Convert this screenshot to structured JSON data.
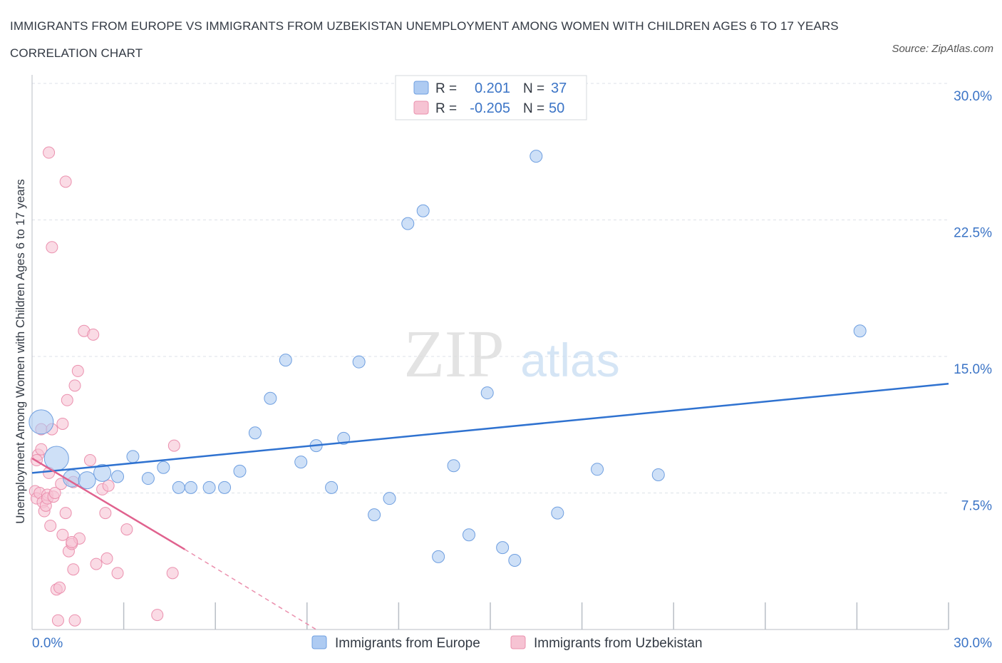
{
  "title": "IMMIGRANTS FROM EUROPE VS IMMIGRANTS FROM UZBEKISTAN UNEMPLOYMENT AMONG WOMEN WITH CHILDREN AGES 6 TO 17 YEARS CORRELATION CHART",
  "source": "Source: ZipAtlas.com",
  "watermark": {
    "zip": "ZIP",
    "atlas": "atlas"
  },
  "colors": {
    "europe_fill": "#aecbf2",
    "europe_stroke": "#6f9fe0",
    "europe_line": "#2f72d0",
    "uzbek_fill": "#f6c3d3",
    "uzbek_stroke": "#eb90ae",
    "uzbek_line": "#e0628e",
    "tick_label": "#3b74c6",
    "grid": "#dde2e8"
  },
  "chart_data": {
    "type": "scatter",
    "xlabel": "",
    "ylabel": "Unemployment Among Women with Children Ages 6 to 17 years",
    "xlim": [
      0,
      30
    ],
    "ylim": [
      0,
      30
    ],
    "x_tick_labels": [
      "0.0%",
      "30.0%"
    ],
    "y_ticks": [
      {
        "value": 7.5,
        "label": "7.5%"
      },
      {
        "value": 15,
        "label": "15.0%"
      },
      {
        "value": 22.5,
        "label": "22.5%"
      },
      {
        "value": 30,
        "label": "30.0%"
      }
    ],
    "legend_top": [
      {
        "r_label": "R =",
        "r_value": "0.201",
        "n_label": "N =",
        "n_value": "37"
      },
      {
        "r_label": "R =",
        "r_value": "-0.205",
        "n_label": "N =",
        "n_value": "50"
      }
    ],
    "series": [
      {
        "name": "Immigrants from Europe",
        "trend": {
          "x0": 0,
          "y0": 8.6,
          "x1": 30,
          "y1": 13.5
        },
        "points": [
          {
            "x": 0.3,
            "y": 11.4,
            "s": 3
          },
          {
            "x": 0.8,
            "y": 9.4,
            "s": 3
          },
          {
            "x": 1.3,
            "y": 8.3,
            "s": 2
          },
          {
            "x": 1.8,
            "y": 8.2,
            "s": 2
          },
          {
            "x": 2.3,
            "y": 8.6,
            "s": 2
          },
          {
            "x": 2.8,
            "y": 8.4,
            "s": 1
          },
          {
            "x": 3.3,
            "y": 9.5,
            "s": 1
          },
          {
            "x": 3.8,
            "y": 8.3,
            "s": 1
          },
          {
            "x": 4.3,
            "y": 8.9,
            "s": 1
          },
          {
            "x": 4.8,
            "y": 7.8,
            "s": 1
          },
          {
            "x": 5.2,
            "y": 7.8,
            "s": 1
          },
          {
            "x": 5.8,
            "y": 7.8,
            "s": 1
          },
          {
            "x": 6.3,
            "y": 7.8,
            "s": 1
          },
          {
            "x": 6.8,
            "y": 8.7,
            "s": 1
          },
          {
            "x": 7.3,
            "y": 10.8,
            "s": 1
          },
          {
            "x": 7.8,
            "y": 12.7,
            "s": 1
          },
          {
            "x": 8.3,
            "y": 14.8,
            "s": 1
          },
          {
            "x": 8.8,
            "y": 9.2,
            "s": 1
          },
          {
            "x": 9.3,
            "y": 10.1,
            "s": 1
          },
          {
            "x": 9.8,
            "y": 7.8,
            "s": 1
          },
          {
            "x": 10.2,
            "y": 10.5,
            "s": 1
          },
          {
            "x": 10.7,
            "y": 14.7,
            "s": 1
          },
          {
            "x": 11.2,
            "y": 6.3,
            "s": 1
          },
          {
            "x": 11.7,
            "y": 7.2,
            "s": 1
          },
          {
            "x": 12.3,
            "y": 22.3,
            "s": 1
          },
          {
            "x": 12.8,
            "y": 23.0,
            "s": 1
          },
          {
            "x": 13.3,
            "y": 4.0,
            "s": 1
          },
          {
            "x": 13.8,
            "y": 9.0,
            "s": 1
          },
          {
            "x": 14.3,
            "y": 5.2,
            "s": 1
          },
          {
            "x": 14.9,
            "y": 13.0,
            "s": 1
          },
          {
            "x": 15.4,
            "y": 4.5,
            "s": 1
          },
          {
            "x": 15.8,
            "y": 3.8,
            "s": 1
          },
          {
            "x": 16.5,
            "y": 26.0,
            "s": 1
          },
          {
            "x": 17.2,
            "y": 6.4,
            "s": 1
          },
          {
            "x": 18.5,
            "y": 8.8,
            "s": 1
          },
          {
            "x": 20.5,
            "y": 8.5,
            "s": 1
          },
          {
            "x": 27.1,
            "y": 16.4,
            "s": 1
          }
        ]
      },
      {
        "name": "Immigrants from Uzbekistan",
        "trend": {
          "x0": 0,
          "y0": 9.4,
          "x1": 5.0,
          "y1": 4.4
        },
        "trend_ext": {
          "x0": 5.0,
          "y0": 4.4,
          "x1": 9.3,
          "y1": 0.0
        },
        "points": [
          {
            "x": 0.1,
            "y": 7.6
          },
          {
            "x": 0.15,
            "y": 7.2
          },
          {
            "x": 0.2,
            "y": 9.6
          },
          {
            "x": 0.25,
            "y": 7.5
          },
          {
            "x": 0.3,
            "y": 11.0
          },
          {
            "x": 0.3,
            "y": 9.9
          },
          {
            "x": 0.35,
            "y": 7.0
          },
          {
            "x": 0.4,
            "y": 6.5
          },
          {
            "x": 0.45,
            "y": 6.8
          },
          {
            "x": 0.5,
            "y": 7.4
          },
          {
            "x": 0.5,
            "y": 7.2
          },
          {
            "x": 0.55,
            "y": 8.6
          },
          {
            "x": 0.6,
            "y": 5.7
          },
          {
            "x": 0.65,
            "y": 11.0
          },
          {
            "x": 0.7,
            "y": 7.3
          },
          {
            "x": 0.75,
            "y": 7.5
          },
          {
            "x": 0.55,
            "y": 26.2
          },
          {
            "x": 0.65,
            "y": 21.0
          },
          {
            "x": 0.8,
            "y": 2.2
          },
          {
            "x": 0.85,
            "y": 0.5
          },
          {
            "x": 0.9,
            "y": 2.3
          },
          {
            "x": 0.95,
            "y": 8.0
          },
          {
            "x": 1.0,
            "y": 11.3
          },
          {
            "x": 1.0,
            "y": 5.2
          },
          {
            "x": 1.1,
            "y": 6.4
          },
          {
            "x": 1.1,
            "y": 24.6
          },
          {
            "x": 1.15,
            "y": 12.6
          },
          {
            "x": 1.2,
            "y": 4.3
          },
          {
            "x": 1.3,
            "y": 4.7
          },
          {
            "x": 1.35,
            "y": 3.3
          },
          {
            "x": 1.4,
            "y": 13.4
          },
          {
            "x": 1.4,
            "y": 0.5
          },
          {
            "x": 1.5,
            "y": 14.2
          },
          {
            "x": 1.55,
            "y": 5.0
          },
          {
            "x": 1.3,
            "y": 4.8
          },
          {
            "x": 1.35,
            "y": 8.1
          },
          {
            "x": 1.7,
            "y": 16.4
          },
          {
            "x": 1.9,
            "y": 9.3
          },
          {
            "x": 2.0,
            "y": 16.2
          },
          {
            "x": 2.1,
            "y": 3.6
          },
          {
            "x": 2.3,
            "y": 7.7
          },
          {
            "x": 2.4,
            "y": 6.4
          },
          {
            "x": 2.45,
            "y": 3.9
          },
          {
            "x": 2.5,
            "y": 7.9
          },
          {
            "x": 2.8,
            "y": 3.1
          },
          {
            "x": 3.1,
            "y": 5.5
          },
          {
            "x": 4.1,
            "y": 0.8
          },
          {
            "x": 4.6,
            "y": 3.1
          },
          {
            "x": 4.65,
            "y": 10.1
          },
          {
            "x": 0.15,
            "y": 9.3
          }
        ]
      }
    ]
  },
  "legend_bottom": [
    {
      "label": "Immigrants from Europe"
    },
    {
      "label": "Immigrants from Uzbekistan"
    }
  ]
}
